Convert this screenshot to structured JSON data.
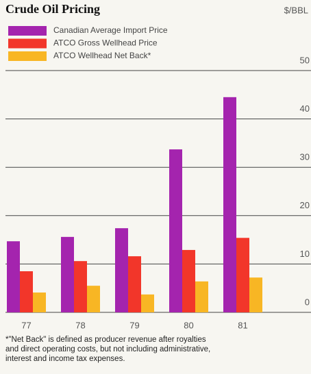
{
  "chart_data": {
    "type": "bar",
    "title": "Crude Oil Pricing",
    "y_label": "$/BBL",
    "categories": [
      "77",
      "78",
      "79",
      "80",
      "81"
    ],
    "series": [
      {
        "name": "Canadian Average Import Price",
        "color": "#a424ae",
        "values": [
          14.7,
          15.6,
          17.4,
          33.7,
          44.5
        ]
      },
      {
        "name": "ATCO Gross Wellhead Price",
        "color": "#f2362a",
        "values": [
          8.5,
          10.6,
          11.6,
          12.9,
          15.4
        ]
      },
      {
        "name": "ATCO Wellhead Net Back*",
        "color": "#f8b624",
        "values": [
          4.1,
          5.5,
          3.7,
          6.4,
          7.2
        ]
      }
    ],
    "ylim": [
      0,
      50
    ],
    "yticks": [
      0,
      10,
      20,
      30,
      40,
      50
    ],
    "grid": true,
    "footnote": [
      "*\"Net Back\" is defined as producer revenue after royalties",
      "and direct operating costs, but not including administrative,",
      "interest and income tax expenses."
    ]
  }
}
